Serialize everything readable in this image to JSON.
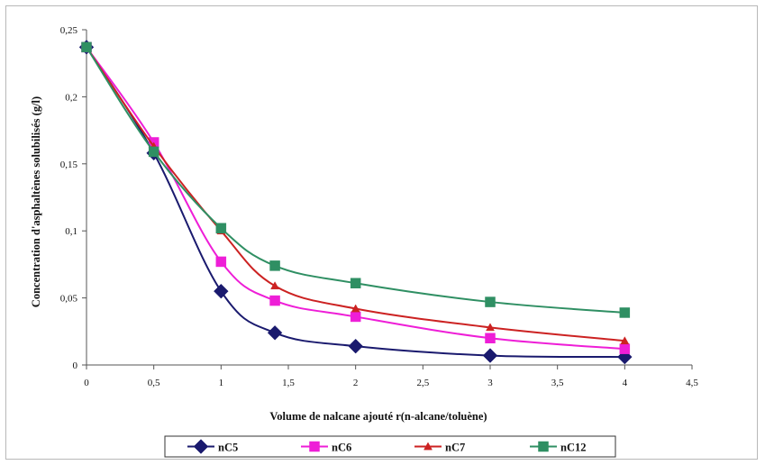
{
  "chart_data": {
    "type": "line",
    "title": "",
    "xlabel": "Volume de nalcane ajouté r(n-alcane/toluène)",
    "ylabel": "Concentration d'asphaltènes solubilisés (g/l)",
    "xlim": [
      0,
      4.5
    ],
    "ylim": [
      0,
      0.25
    ],
    "x_ticks": [
      "0",
      "0,5",
      "1",
      "1,5",
      "2",
      "2,5",
      "3",
      "3,5",
      "4",
      "4,5"
    ],
    "y_ticks": [
      "0",
      "0,05",
      "0,1",
      "0,15",
      "0,2",
      "0,25"
    ],
    "grid": false,
    "legend_position": "bottom",
    "series": [
      {
        "name": "nC5",
        "color": "#1a1a6e",
        "marker": "diamond",
        "x": [
          0,
          0.5,
          1,
          1.4,
          2,
          3,
          4
        ],
        "values": [
          0.237,
          0.158,
          0.055,
          0.024,
          0.014,
          0.007,
          0.006
        ]
      },
      {
        "name": "nC6",
        "color": "#ee1ed7",
        "marker": "square",
        "x": [
          0,
          0.5,
          1,
          1.4,
          2,
          3,
          4
        ],
        "values": [
          0.237,
          0.166,
          0.077,
          0.048,
          0.036,
          0.02,
          0.012
        ]
      },
      {
        "name": "nC7",
        "color": "#cc2222",
        "marker": "triangle",
        "x": [
          0,
          0.5,
          1,
          1.4,
          2,
          3,
          4
        ],
        "values": [
          0.237,
          0.163,
          0.1,
          0.059,
          0.042,
          0.028,
          0.018
        ]
      },
      {
        "name": "nC12",
        "color": "#2f8f63",
        "marker": "square",
        "x": [
          0,
          0.5,
          1,
          1.4,
          2,
          3,
          4
        ],
        "values": [
          0.237,
          0.159,
          0.102,
          0.074,
          0.061,
          0.047,
          0.039
        ]
      }
    ]
  }
}
